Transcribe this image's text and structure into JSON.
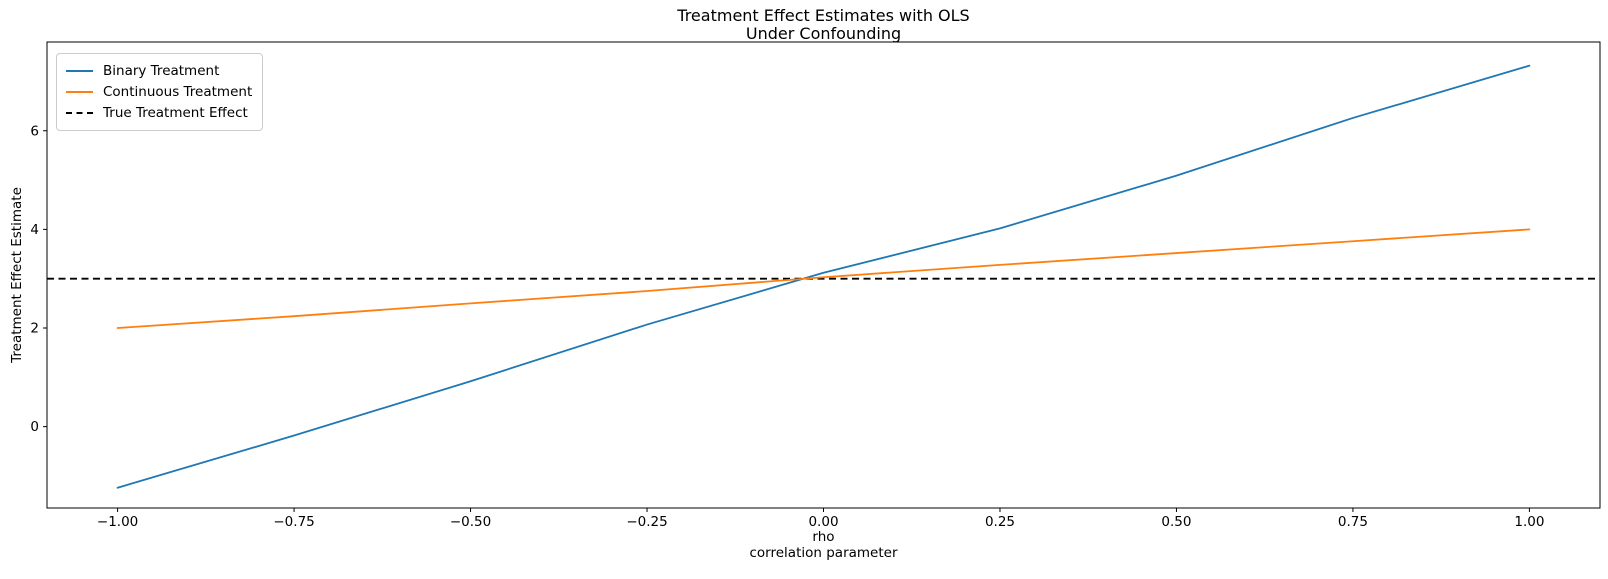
{
  "chart_data": {
    "type": "line",
    "title": "Treatment Effect Estimates with OLS",
    "subtitle": "Under Confounding",
    "xlabel": "rho",
    "xlabel_sub": "correlation parameter",
    "ylabel": "Treatment Effect Estimate",
    "xlim": [
      -1.1,
      1.1
    ],
    "ylim": [
      -1.65,
      7.8
    ],
    "grid": false,
    "background_color": "#ffffff",
    "x": [
      -1.0,
      -0.75,
      -0.5,
      -0.25,
      0.0,
      0.25,
      0.5,
      0.75,
      1.0
    ],
    "series": [
      {
        "name": "Binary Treatment",
        "color": "#1f77b4",
        "line_style": "solid",
        "values": [
          -1.24,
          -0.18,
          0.92,
          2.07,
          3.12,
          4.02,
          5.09,
          6.26,
          7.32
        ]
      },
      {
        "name": "Continuous Treatment",
        "color": "#ff7f0e",
        "line_style": "solid",
        "values": [
          2.0,
          2.24,
          2.5,
          2.75,
          3.03,
          3.28,
          3.52,
          3.76,
          4.0
        ]
      }
    ],
    "reference_line": {
      "name": "True Treatment Effect",
      "y": 3.0,
      "color": "#000000",
      "line_style": "dashed"
    },
    "xticks": {
      "values": [
        -1.0,
        -0.75,
        -0.5,
        -0.25,
        0.0,
        0.25,
        0.5,
        0.75,
        1.0
      ],
      "labels": [
        "−1.00",
        "−0.75",
        "−0.50",
        "−0.25",
        "0.00",
        "0.25",
        "0.50",
        "0.75",
        "1.00"
      ]
    },
    "yticks": {
      "values": [
        0,
        2,
        4,
        6
      ],
      "labels": [
        "0",
        "2",
        "4",
        "6"
      ]
    },
    "legend": {
      "position": "upper-left",
      "entries": [
        {
          "label": "Binary Treatment",
          "color": "#1f77b4",
          "line_style": "solid"
        },
        {
          "label": "Continuous Treatment",
          "color": "#ff7f0e",
          "line_style": "solid"
        },
        {
          "label": "True Treatment Effect",
          "color": "#000000",
          "line_style": "dashed"
        }
      ]
    }
  }
}
